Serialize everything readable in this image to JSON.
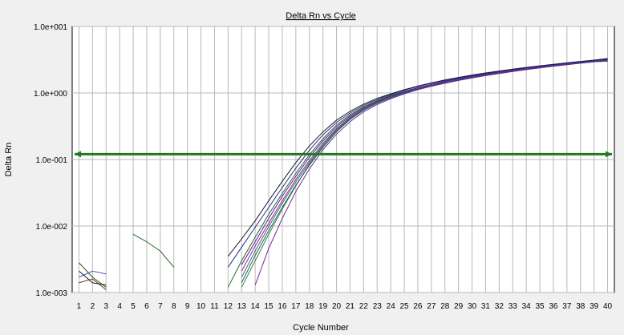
{
  "chart_data": {
    "type": "line",
    "title": "Delta Rn vs Cycle",
    "xlabel": "Cycle Number",
    "ylabel": "Delta Rn",
    "x": [
      1,
      2,
      3,
      4,
      5,
      6,
      7,
      8,
      9,
      10,
      11,
      12,
      13,
      14,
      15,
      16,
      17,
      18,
      19,
      20,
      21,
      22,
      23,
      24,
      25,
      26,
      27,
      28,
      29,
      30,
      31,
      32,
      33,
      34,
      35,
      36,
      37,
      38,
      39,
      40
    ],
    "xlim": [
      0.5,
      40.5
    ],
    "ylim": [
      0.001,
      10
    ],
    "y_scale": "log",
    "x_ticks": [
      "1",
      "2",
      "3",
      "4",
      "5",
      "6",
      "7",
      "8",
      "9",
      "10",
      "11",
      "12",
      "13",
      "14",
      "15",
      "16",
      "17",
      "18",
      "19",
      "20",
      "21",
      "22",
      "23",
      "24",
      "25",
      "26",
      "27",
      "28",
      "29",
      "30",
      "31",
      "32",
      "33",
      "34",
      "35",
      "36",
      "37",
      "38",
      "39",
      "40"
    ],
    "y_ticks": [
      {
        "value": 0.001,
        "label": "1.0e-003"
      },
      {
        "value": 0.01,
        "label": "1.0e-002"
      },
      {
        "value": 0.1,
        "label": "1.0e-001"
      },
      {
        "value": 1,
        "label": "1.0e+000"
      },
      {
        "value": 10,
        "label": "1.0e+001"
      }
    ],
    "grid": true,
    "threshold": {
      "value": 0.12,
      "color": "#1f7a1f"
    },
    "series_colors": [
      "#111111",
      "#1b5e20",
      "#2e7d32",
      "#4a148c",
      "#7b1fa2",
      "#1a237e",
      "#555555",
      "#006064",
      "#6a1b9a",
      "#2e4600",
      "#3f51b5",
      "#4e342e"
    ],
    "series": [
      {
        "x": [
          12,
          13,
          14,
          15,
          16,
          17,
          18,
          19,
          20,
          21,
          22,
          23,
          24,
          25,
          26,
          27,
          28,
          29,
          30,
          31,
          32,
          33,
          34,
          35,
          36,
          37,
          38,
          39,
          40
        ],
        "values": [
          0.0035,
          0.0064,
          0.012,
          0.024,
          0.047,
          0.09,
          0.16,
          0.26,
          0.39,
          0.53,
          0.68,
          0.83,
          0.97,
          1.12,
          1.27,
          1.42,
          1.57,
          1.71,
          1.86,
          2.0,
          2.14,
          2.28,
          2.42,
          2.56,
          2.7,
          2.84,
          2.98,
          3.12,
          3.3
        ]
      },
      {
        "x": [
          12,
          13,
          14,
          15,
          16,
          17,
          18,
          19,
          20,
          21,
          22,
          23,
          24,
          25,
          26,
          27,
          28,
          29,
          30,
          31,
          32,
          33,
          34,
          35,
          36,
          37,
          38,
          39,
          40
        ],
        "values": [
          0.0012,
          0.003,
          0.0068,
          0.015,
          0.031,
          0.062,
          0.118,
          0.205,
          0.33,
          0.47,
          0.62,
          0.77,
          0.92,
          1.06,
          1.2,
          1.34,
          1.48,
          1.62,
          1.76,
          1.89,
          2.02,
          2.15,
          2.28,
          2.42,
          2.56,
          2.7,
          2.84,
          2.98,
          3.1
        ]
      },
      {
        "x": [
          13,
          14,
          15,
          16,
          17,
          18,
          19,
          20,
          21,
          22,
          23,
          24,
          25,
          26,
          27,
          28,
          29,
          30,
          31,
          32,
          33,
          34,
          35,
          36,
          37,
          38,
          39,
          40
        ],
        "values": [
          0.0012,
          0.003,
          0.0075,
          0.018,
          0.04,
          0.085,
          0.16,
          0.27,
          0.41,
          0.56,
          0.71,
          0.86,
          1.0,
          1.15,
          1.29,
          1.43,
          1.57,
          1.71,
          1.85,
          1.98,
          2.12,
          2.26,
          2.4,
          2.54,
          2.68,
          2.82,
          2.95,
          3.0
        ]
      },
      {
        "x": [
          13,
          14,
          15,
          16,
          17,
          18,
          19,
          20,
          21,
          22,
          23,
          24,
          25,
          26,
          27,
          28,
          29,
          30,
          31,
          32,
          33,
          34,
          35,
          36,
          37,
          38,
          39,
          40
        ],
        "values": [
          0.0026,
          0.0058,
          0.013,
          0.028,
          0.056,
          0.108,
          0.19,
          0.31,
          0.45,
          0.6,
          0.75,
          0.9,
          1.05,
          1.2,
          1.35,
          1.5,
          1.64,
          1.79,
          1.93,
          2.07,
          2.21,
          2.36,
          2.5,
          2.65,
          2.8,
          2.94,
          3.08,
          3.2
        ]
      },
      {
        "x": [
          13,
          14,
          15,
          16,
          17,
          18,
          19,
          20,
          21,
          22,
          23,
          24,
          25,
          26,
          27,
          28,
          29,
          30,
          31,
          32,
          33,
          34,
          35,
          36,
          37,
          38,
          39,
          40
        ],
        "values": [
          0.0021,
          0.005,
          0.011,
          0.024,
          0.05,
          0.096,
          0.175,
          0.29,
          0.43,
          0.58,
          0.73,
          0.88,
          1.03,
          1.18,
          1.33,
          1.47,
          1.61,
          1.75,
          1.9,
          2.04,
          2.18,
          2.32,
          2.47,
          2.61,
          2.75,
          2.9,
          3.04,
          3.15
        ]
      },
      {
        "x": [
          12,
          13,
          14,
          15,
          16,
          17,
          18,
          19,
          20,
          21,
          22,
          23,
          24,
          25,
          26,
          27,
          28,
          29,
          30,
          31,
          32,
          33,
          34,
          35,
          36,
          37,
          38,
          39,
          40
        ],
        "values": [
          0.0024,
          0.0048,
          0.0096,
          0.019,
          0.038,
          0.074,
          0.138,
          0.235,
          0.36,
          0.5,
          0.65,
          0.8,
          0.95,
          1.1,
          1.25,
          1.4,
          1.54,
          1.68,
          1.82,
          1.96,
          2.1,
          2.24,
          2.38,
          2.52,
          2.66,
          2.8,
          2.94,
          3.08,
          3.22
        ]
      },
      {
        "x": [
          13,
          14,
          15,
          16,
          17,
          18,
          19,
          20,
          21,
          22,
          23,
          24,
          25,
          26,
          27,
          28,
          29,
          30,
          31,
          32,
          33,
          34,
          35,
          36,
          37,
          38,
          39,
          40
        ],
        "values": [
          0.0017,
          0.0042,
          0.0098,
          0.022,
          0.046,
          0.09,
          0.165,
          0.28,
          0.42,
          0.57,
          0.72,
          0.87,
          1.01,
          1.16,
          1.3,
          1.44,
          1.58,
          1.72,
          1.86,
          2.0,
          2.14,
          2.28,
          2.42,
          2.56,
          2.7,
          2.84,
          2.98,
          3.1
        ]
      },
      {
        "x": [
          13,
          14,
          15,
          16,
          17,
          18,
          19,
          20,
          21,
          22,
          23,
          24,
          25,
          26,
          27,
          28,
          29,
          30,
          31,
          32,
          33,
          34,
          35,
          36,
          37,
          38,
          39,
          40
        ],
        "values": [
          0.0014,
          0.0036,
          0.0085,
          0.019,
          0.041,
          0.082,
          0.152,
          0.26,
          0.4,
          0.55,
          0.7,
          0.85,
          1.0,
          1.14,
          1.28,
          1.42,
          1.56,
          1.7,
          1.84,
          1.98,
          2.12,
          2.26,
          2.4,
          2.54,
          2.68,
          2.82,
          2.96,
          3.05
        ]
      },
      {
        "x": [
          14,
          15,
          16,
          17,
          18,
          19,
          20,
          21,
          22,
          23,
          24,
          25,
          26,
          27,
          28,
          29,
          30,
          31,
          32,
          33,
          34,
          35,
          36,
          37,
          38,
          39,
          40
        ],
        "values": [
          0.0013,
          0.0046,
          0.013,
          0.033,
          0.072,
          0.14,
          0.24,
          0.37,
          0.52,
          0.67,
          0.82,
          0.97,
          1.12,
          1.26,
          1.4,
          1.54,
          1.68,
          1.82,
          1.96,
          2.1,
          2.24,
          2.38,
          2.52,
          2.66,
          2.8,
          2.94,
          3.02
        ]
      },
      {
        "x": [
          1,
          2,
          3
        ],
        "values": [
          0.0028,
          0.0017,
          0.0012
        ]
      },
      {
        "x": [
          1,
          2,
          3
        ],
        "values": [
          0.0017,
          0.0021,
          0.0019
        ]
      },
      {
        "x": [
          1,
          2,
          3
        ],
        "values": [
          0.0014,
          0.0016,
          0.0011
        ]
      },
      {
        "x": [
          1,
          2,
          3
        ],
        "values": [
          0.0021,
          0.0014,
          0.0013
        ]
      },
      {
        "x": [
          5,
          6,
          7,
          8
        ],
        "values": [
          0.0075,
          0.0058,
          0.0042,
          0.0024
        ]
      }
    ]
  }
}
